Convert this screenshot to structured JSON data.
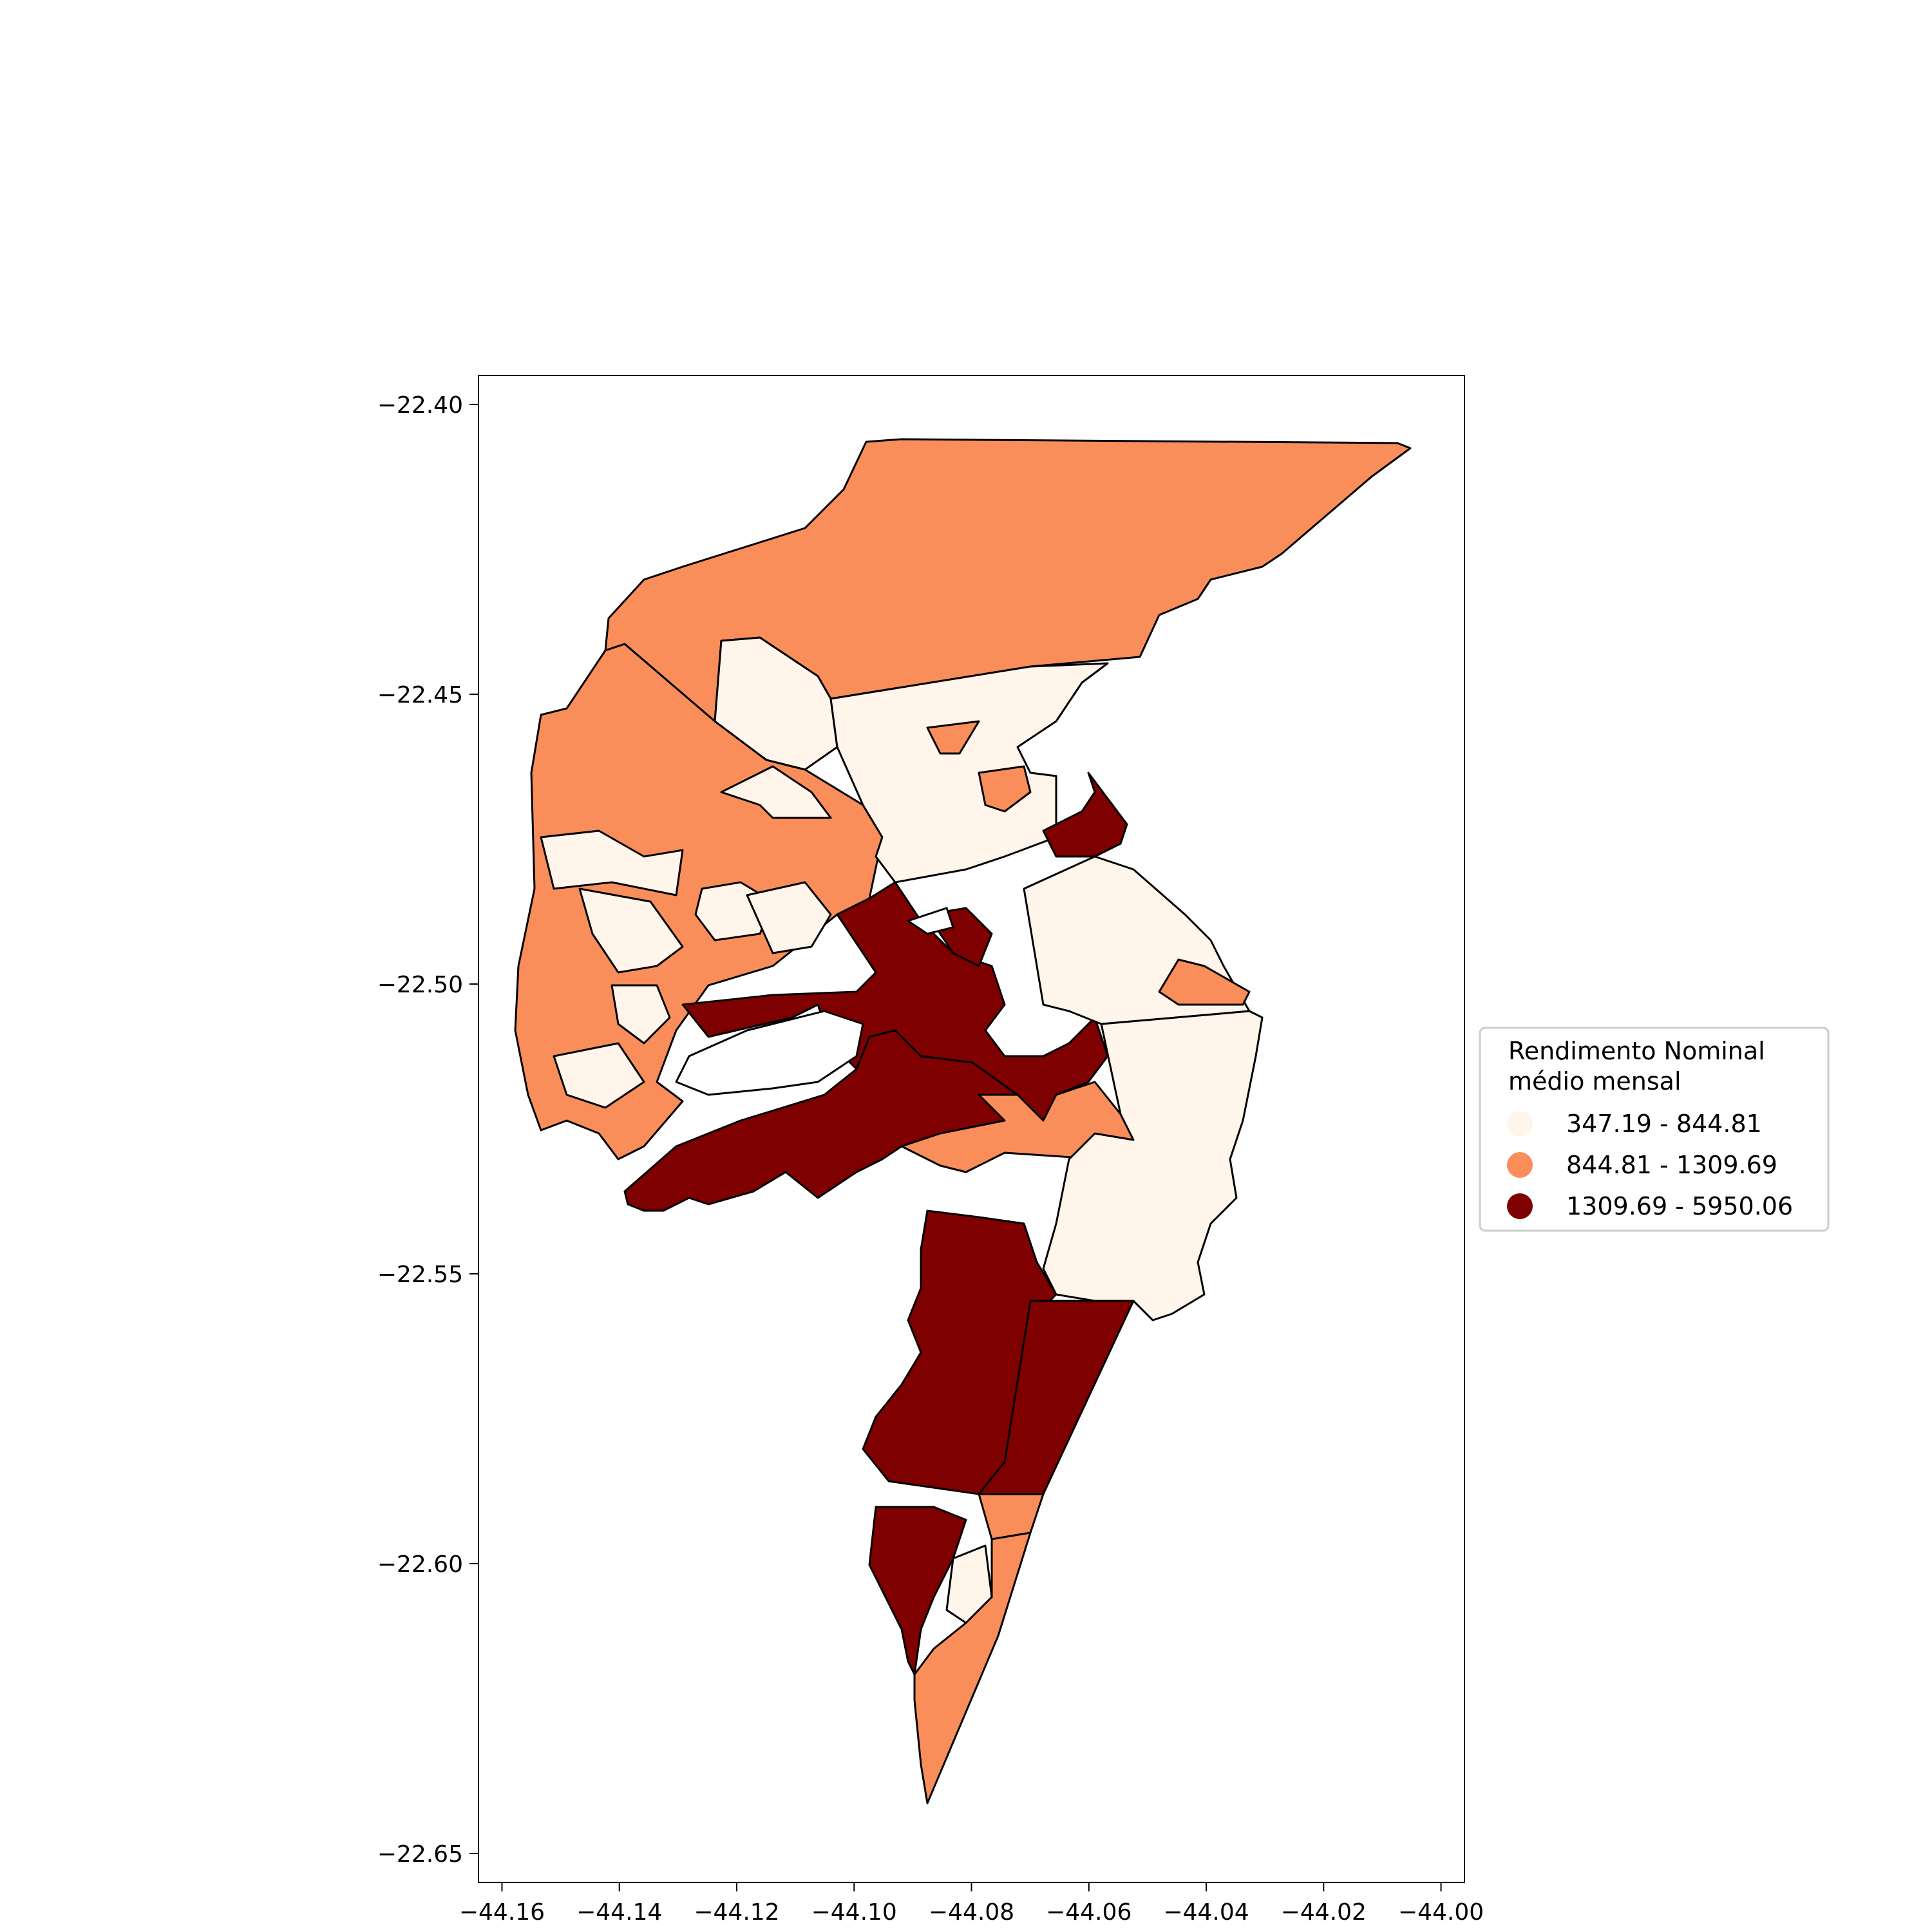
{
  "map": {
    "x_ticks": [
      "−44.16",
      "−44.14",
      "−44.12",
      "−44.10",
      "−44.08",
      "−44.06",
      "−44.04",
      "−44.02",
      "−44.00"
    ],
    "y_ticks": [
      "−22.40",
      "−22.45",
      "−22.50",
      "−22.55",
      "−22.60",
      "−22.65"
    ],
    "xlim": [
      -44.164,
      -43.996
    ],
    "ylim": [
      -22.655,
      -22.395
    ],
    "colors": {
      "low": "#fff5eb",
      "mid": "#f98e5b",
      "high": "#7f0000",
      "edge": "#000000"
    }
  },
  "legend": {
    "title_line1": "Rendimento Nominal",
    "title_line2": "médio mensal",
    "items": [
      {
        "label": "347.19 - 844.81",
        "color": "#fff5eb"
      },
      {
        "label": "844.81 - 1309.69",
        "color": "#f98e5b"
      },
      {
        "label": "1309.69 - 5950.06",
        "color": "#7f0000"
      }
    ]
  }
}
